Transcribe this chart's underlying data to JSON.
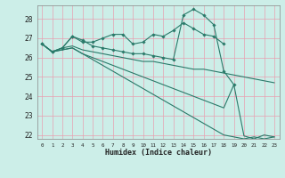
{
  "title": "",
  "xlabel": "Humidex (Indice chaleur)",
  "background_color": "#cceee8",
  "grid_color": "#e8a0b0",
  "line_color": "#2a7a6a",
  "xlim": [
    -0.5,
    23.5
  ],
  "ylim": [
    21.8,
    28.7
  ],
  "yticks": [
    22,
    23,
    24,
    25,
    26,
    27,
    28
  ],
  "xticks": [
    0,
    1,
    2,
    3,
    4,
    5,
    6,
    7,
    8,
    9,
    10,
    11,
    12,
    13,
    14,
    15,
    16,
    17,
    18,
    19,
    20,
    21,
    22,
    23
  ],
  "line1_x": [
    0,
    1,
    2,
    3,
    4,
    5,
    6,
    7,
    8,
    9,
    10,
    11,
    12,
    13,
    14,
    15,
    16,
    17,
    18
  ],
  "line1_y": [
    26.7,
    26.3,
    26.5,
    27.1,
    26.8,
    26.8,
    27.0,
    27.2,
    27.2,
    26.7,
    26.8,
    27.2,
    27.1,
    27.4,
    27.8,
    27.5,
    27.2,
    27.1,
    26.7
  ],
  "line2_x": [
    0,
    1,
    2,
    3,
    4,
    5,
    6,
    7,
    8,
    9,
    10,
    11,
    12,
    13,
    14,
    15,
    16,
    17,
    18,
    19
  ],
  "line2_y": [
    26.7,
    26.3,
    26.5,
    27.1,
    26.9,
    26.6,
    26.5,
    26.4,
    26.3,
    26.2,
    26.2,
    26.1,
    26.0,
    25.9,
    28.2,
    28.5,
    28.2,
    27.7,
    25.3,
    24.6
  ],
  "line3_x": [
    0,
    1,
    2,
    3,
    4,
    5,
    6,
    7,
    8,
    9,
    10,
    11,
    12,
    13,
    14,
    15,
    16,
    17,
    18,
    19,
    20,
    21,
    22,
    23
  ],
  "line3_y": [
    26.7,
    26.3,
    26.5,
    26.6,
    26.4,
    26.3,
    26.2,
    26.1,
    26.0,
    25.9,
    25.8,
    25.8,
    25.7,
    25.6,
    25.5,
    25.4,
    25.4,
    25.3,
    25.2,
    25.1,
    25.0,
    24.9,
    24.8,
    24.7
  ],
  "line4_x": [
    0,
    1,
    2,
    3,
    4,
    5,
    6,
    7,
    8,
    9,
    10,
    11,
    12,
    13,
    14,
    15,
    16,
    17,
    18,
    19,
    20,
    21,
    22,
    23
  ],
  "line4_y": [
    26.7,
    26.3,
    26.4,
    26.5,
    26.2,
    26.0,
    25.8,
    25.6,
    25.4,
    25.2,
    25.0,
    24.8,
    24.6,
    24.4,
    24.2,
    24.0,
    23.8,
    23.6,
    23.4,
    24.6,
    21.95,
    21.8,
    22.0,
    21.9
  ],
  "line5_x": [
    0,
    1,
    2,
    3,
    4,
    5,
    6,
    7,
    8,
    9,
    10,
    11,
    12,
    13,
    14,
    15,
    16,
    17,
    18,
    19,
    20,
    21,
    22,
    23
  ],
  "line5_y": [
    26.7,
    26.3,
    26.4,
    26.5,
    26.2,
    25.9,
    25.6,
    25.3,
    25.0,
    24.7,
    24.4,
    24.1,
    23.8,
    23.5,
    23.2,
    22.9,
    22.6,
    22.3,
    22.0,
    21.9,
    21.8,
    21.9,
    21.8,
    21.9
  ]
}
